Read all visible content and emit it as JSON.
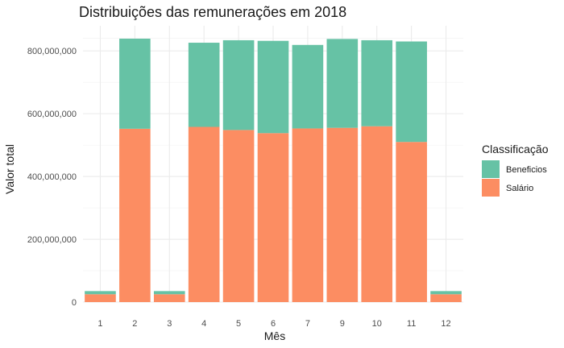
{
  "chart_data": {
    "type": "bar",
    "stacked": true,
    "title": "Distribuições das remunerações em 2018",
    "xlabel": "Mês",
    "ylabel": "Valor total",
    "ylim": [
      0,
      880000000
    ],
    "yticks": [
      0,
      200000000,
      400000000,
      600000000,
      800000000
    ],
    "ytick_labels": [
      "0",
      "200,000,000",
      "400,000,000",
      "600,000,000",
      "800,000,000"
    ],
    "grid": true,
    "legend": {
      "title": "Classificação",
      "position": "right"
    },
    "categories": [
      "1",
      "2",
      "3",
      "4",
      "5",
      "6",
      "7",
      "9",
      "10",
      "11",
      "12"
    ],
    "series": [
      {
        "name": "Salário",
        "color": "#FC8D62",
        "values": [
          25000000,
          552000000,
          25000000,
          558000000,
          548000000,
          538000000,
          553000000,
          555000000,
          560000000,
          510000000,
          25000000
        ]
      },
      {
        "name": "Beneficios",
        "color": "#66C2A5",
        "values": [
          10000000,
          287000000,
          10000000,
          268000000,
          286000000,
          294000000,
          266000000,
          283000000,
          274000000,
          320000000,
          10000000
        ]
      }
    ]
  }
}
